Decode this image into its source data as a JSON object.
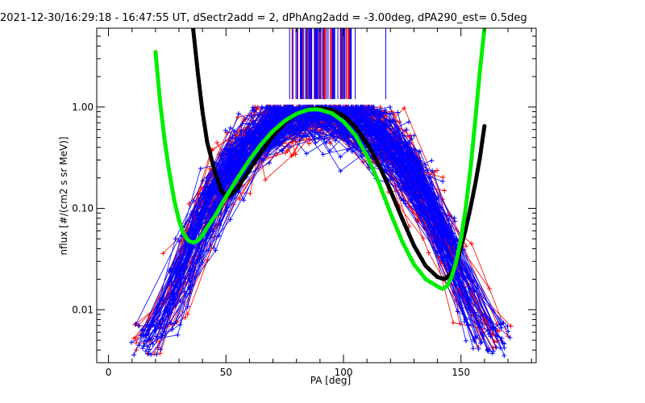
{
  "chart_data": {
    "type": "scatter",
    "title": "2021-12-30/16:29:18 - 16:47:55 UT, dSectr2add = 2, dPhAng2add = -3.00deg, dPA290_est=   0.5deg",
    "xlabel": "PA [deg]",
    "ylabel": "nflux [#/(cm2 s sr MeV)]",
    "xlim": [
      -5,
      182
    ],
    "ylim": [
      0.003,
      6.0
    ],
    "yscale": "log",
    "x_ticks": [
      0,
      50,
      100,
      150
    ],
    "x_tick_labels": [
      "0",
      "50",
      "100",
      "150"
    ],
    "y_ticks": [
      0.01,
      0.1,
      1.0
    ],
    "y_tick_labels": [
      "0.01",
      "0.10",
      "1.00"
    ],
    "grid": false,
    "colors": {
      "red_series": "#ff0000",
      "blue_series": "#0000ff",
      "black_fit": "#000000",
      "green_fit": "#00ee00",
      "markers": "#0000ff"
    },
    "black_fit": {
      "x": [
        36,
        38,
        40,
        42,
        45,
        48,
        50,
        52,
        55,
        60,
        65,
        70,
        75,
        80,
        85,
        90,
        95,
        100,
        105,
        110,
        115,
        120,
        125,
        130,
        135,
        140,
        143,
        146,
        148,
        150,
        152,
        154,
        156,
        158,
        160
      ],
      "y": [
        6.0,
        2.2,
        0.9,
        0.45,
        0.24,
        0.15,
        0.13,
        0.135,
        0.16,
        0.24,
        0.36,
        0.52,
        0.7,
        0.86,
        0.95,
        0.98,
        0.94,
        0.82,
        0.64,
        0.44,
        0.27,
        0.15,
        0.079,
        0.043,
        0.027,
        0.021,
        0.02,
        0.023,
        0.029,
        0.041,
        0.062,
        0.1,
        0.17,
        0.31,
        0.65
      ]
    },
    "green_fit": {
      "x": [
        20,
        22,
        24,
        26,
        28,
        30,
        32,
        34,
        36,
        38,
        40,
        42,
        45,
        50,
        55,
        60,
        65,
        70,
        75,
        80,
        85,
        88,
        90,
        95,
        100,
        105,
        110,
        115,
        120,
        125,
        130,
        135,
        140,
        142,
        144,
        146,
        148,
        150,
        152,
        154,
        156,
        158,
        160
      ],
      "y": [
        3.5,
        1.1,
        0.45,
        0.22,
        0.12,
        0.076,
        0.056,
        0.048,
        0.046,
        0.048,
        0.054,
        0.065,
        0.082,
        0.13,
        0.2,
        0.3,
        0.43,
        0.58,
        0.73,
        0.86,
        0.94,
        0.95,
        0.94,
        0.87,
        0.72,
        0.53,
        0.33,
        0.18,
        0.09,
        0.047,
        0.028,
        0.02,
        0.017,
        0.016,
        0.017,
        0.021,
        0.03,
        0.05,
        0.1,
        0.24,
        0.7,
        2.2,
        6.0
      ]
    },
    "pa_markers": {
      "x_range": [
        77,
        104
      ],
      "count": 90,
      "extra_x": [
        105,
        118
      ],
      "y_bottom": 1.2
    },
    "spread_series_note": ""
  }
}
